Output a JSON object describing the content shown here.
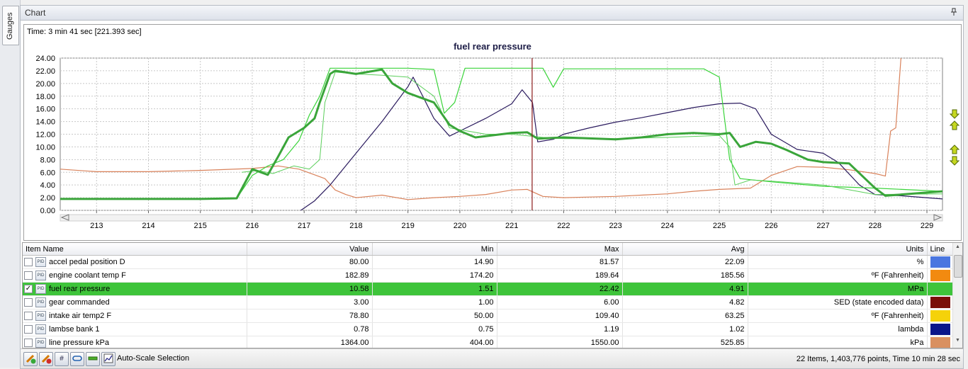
{
  "side_tab": {
    "label": "Gauges"
  },
  "panel": {
    "title": "Chart"
  },
  "time_label": "Time: 3 min 41 sec [221.393 sec]",
  "chart_data": {
    "type": "line",
    "title": "fuel rear pressure",
    "xlim": [
      212.3,
      229.3
    ],
    "ylim": [
      0,
      24
    ],
    "cursor_x": 221.393,
    "x_ticks": [
      213,
      214,
      215,
      216,
      217,
      218,
      219,
      220,
      221,
      222,
      223,
      224,
      225,
      226,
      227,
      228,
      229
    ],
    "y_ticks": [
      "0.00",
      "2.00",
      "4.00",
      "6.00",
      "8.00",
      "10.00",
      "12.00",
      "14.00",
      "16.00",
      "18.00",
      "20.00",
      "22.00",
      "24.00"
    ],
    "grid": true,
    "series": [
      {
        "color": "#d9825b",
        "width": 1.2,
        "points": [
          [
            212.3,
            6.5
          ],
          [
            213,
            6.1
          ],
          [
            214,
            6.1
          ],
          [
            215,
            6.3
          ],
          [
            216,
            6.6
          ],
          [
            216.5,
            7.0
          ],
          [
            216.9,
            6.5
          ],
          [
            217.2,
            5.6
          ],
          [
            217.4,
            5.0
          ],
          [
            217.6,
            3.2
          ],
          [
            217.8,
            2.5
          ],
          [
            218,
            2.0
          ],
          [
            218.5,
            2.4
          ],
          [
            219,
            1.7
          ],
          [
            219.5,
            2.0
          ],
          [
            220,
            2.2
          ],
          [
            220.5,
            2.5
          ],
          [
            221,
            3.2
          ],
          [
            221.3,
            3.3
          ],
          [
            221.6,
            2.2
          ],
          [
            222,
            2.0
          ],
          [
            222.5,
            2.1
          ],
          [
            223,
            2.2
          ],
          [
            223.5,
            2.4
          ],
          [
            224,
            2.6
          ],
          [
            224.5,
            3.0
          ],
          [
            225,
            3.3
          ],
          [
            225.3,
            3.4
          ],
          [
            225.6,
            3.5
          ],
          [
            226,
            5.5
          ],
          [
            226.5,
            6.9
          ],
          [
            227,
            6.8
          ],
          [
            227.5,
            6.4
          ],
          [
            228,
            5.8
          ],
          [
            228.2,
            5.4
          ],
          [
            228.3,
            12.5
          ],
          [
            228.4,
            13.0
          ],
          [
            228.5,
            24.0
          ]
        ]
      },
      {
        "color": "#2a1a5e",
        "width": 1.2,
        "points": [
          [
            216.9,
            -0.2
          ],
          [
            217.2,
            1.5
          ],
          [
            217.5,
            4.0
          ],
          [
            218,
            9.0
          ],
          [
            218.5,
            14.0
          ],
          [
            219,
            19.5
          ],
          [
            219.1,
            21.0
          ],
          [
            219.5,
            14.5
          ],
          [
            219.8,
            11.7
          ],
          [
            220,
            12.5
          ],
          [
            220.5,
            14.5
          ],
          [
            221,
            16.8
          ],
          [
            221.2,
            19.0
          ],
          [
            221.4,
            17.0
          ],
          [
            221.5,
            10.8
          ],
          [
            221.8,
            11.2
          ],
          [
            222,
            12.0
          ],
          [
            222.5,
            13.0
          ],
          [
            223,
            13.9
          ],
          [
            223.5,
            14.6
          ],
          [
            224,
            15.4
          ],
          [
            224.5,
            16.2
          ],
          [
            225,
            16.8
          ],
          [
            225.4,
            16.9
          ],
          [
            225.7,
            16.0
          ],
          [
            226,
            12.0
          ],
          [
            226.5,
            9.6
          ],
          [
            227,
            9.0
          ],
          [
            227.3,
            7.5
          ],
          [
            227.7,
            4.0
          ],
          [
            228,
            2.5
          ],
          [
            228.5,
            2.3
          ],
          [
            229.3,
            1.8
          ]
        ]
      },
      {
        "color": "#3ad43a",
        "width": 1.2,
        "points": [
          [
            212.3,
            1.8
          ],
          [
            213,
            1.8
          ],
          [
            214,
            1.8
          ],
          [
            215,
            1.8
          ],
          [
            215.7,
            1.9
          ],
          [
            216,
            5.5
          ],
          [
            216.3,
            7.0
          ],
          [
            216.6,
            8.0
          ],
          [
            216.9,
            11.0
          ],
          [
            217.1,
            15.0
          ],
          [
            217.3,
            18.0
          ],
          [
            217.5,
            22.4
          ],
          [
            218,
            22.4
          ],
          [
            219,
            22.4
          ],
          [
            219.5,
            22.2
          ],
          [
            219.7,
            15.3
          ],
          [
            219.9,
            17.0
          ],
          [
            220.1,
            22.4
          ],
          [
            221,
            22.4
          ],
          [
            221.6,
            22.4
          ],
          [
            221.8,
            19.4
          ],
          [
            222,
            22.3
          ],
          [
            223,
            22.3
          ],
          [
            224,
            22.3
          ],
          [
            224.7,
            22.3
          ],
          [
            225,
            21.0
          ],
          [
            225.2,
            8.0
          ],
          [
            225.4,
            5.0
          ],
          [
            226,
            4.5
          ],
          [
            227,
            3.8
          ],
          [
            228,
            3.5
          ],
          [
            229.3,
            3.0
          ]
        ]
      },
      {
        "color": "#5bcf5b",
        "width": 1.0,
        "points": [
          [
            215.8,
            6.0
          ],
          [
            216.1,
            6.3
          ],
          [
            216.4,
            5.8
          ],
          [
            216.8,
            7.0
          ],
          [
            217.1,
            6.5
          ],
          [
            217.3,
            8.0
          ],
          [
            217.4,
            17.0
          ],
          [
            217.6,
            21.8
          ],
          [
            218,
            21.5
          ],
          [
            218.5,
            21.3
          ],
          [
            219,
            21.0
          ],
          [
            219.5,
            18.0
          ],
          [
            219.8,
            13.0
          ],
          [
            220.5,
            12.0
          ],
          [
            221,
            12.0
          ],
          [
            221.6,
            11.5
          ],
          [
            222,
            11.3
          ],
          [
            223,
            11.3
          ],
          [
            224,
            11.5
          ],
          [
            225,
            11.8
          ],
          [
            225.2,
            10.0
          ],
          [
            225.3,
            4.0
          ],
          [
            225.6,
            4.8
          ],
          [
            226,
            4.6
          ],
          [
            227,
            4.0
          ],
          [
            228,
            2.5
          ],
          [
            229.3,
            2.6
          ]
        ]
      },
      {
        "color": "#3aa53a",
        "width": 3.0,
        "points": [
          [
            212.3,
            1.8
          ],
          [
            213,
            1.8
          ],
          [
            214,
            1.8
          ],
          [
            215,
            1.8
          ],
          [
            215.7,
            1.9
          ],
          [
            216,
            6.5
          ],
          [
            216.3,
            5.6
          ],
          [
            216.5,
            8.5
          ],
          [
            216.7,
            11.5
          ],
          [
            217,
            13.0
          ],
          [
            217.2,
            14.5
          ],
          [
            217.3,
            17.0
          ],
          [
            217.5,
            21.5
          ],
          [
            217.6,
            22.0
          ],
          [
            218,
            21.5
          ],
          [
            218.5,
            22.2
          ],
          [
            218.7,
            20.0
          ],
          [
            219,
            18.5
          ],
          [
            219.5,
            17.0
          ],
          [
            219.8,
            13.5
          ],
          [
            220,
            12.5
          ],
          [
            220.3,
            11.5
          ],
          [
            221,
            12.2
          ],
          [
            221.3,
            12.3
          ],
          [
            221.5,
            11.3
          ],
          [
            222,
            11.5
          ],
          [
            223,
            11.2
          ],
          [
            223.5,
            11.5
          ],
          [
            224,
            12.0
          ],
          [
            224.5,
            12.2
          ],
          [
            225,
            12.0
          ],
          [
            225.2,
            12.2
          ],
          [
            225.4,
            10.0
          ],
          [
            225.7,
            10.8
          ],
          [
            226,
            10.5
          ],
          [
            226.3,
            9.5
          ],
          [
            226.7,
            8.0
          ],
          [
            227,
            7.6
          ],
          [
            227.5,
            7.4
          ],
          [
            228,
            3.5
          ],
          [
            228.2,
            2.3
          ],
          [
            229.3,
            3.0
          ]
        ]
      }
    ]
  },
  "table": {
    "columns": [
      "Item Name",
      "Value",
      "Min",
      "Max",
      "Avg",
      "Units",
      "Line"
    ],
    "rows": [
      {
        "name": "accel pedal position D",
        "value": "80.00",
        "min": "14.90",
        "max": "81.57",
        "avg": "22.09",
        "units": "%",
        "color": "#4a76e0",
        "checked": false,
        "selected": false
      },
      {
        "name": "engine coolant temp F",
        "value": "182.89",
        "min": "174.20",
        "max": "189.64",
        "avg": "185.56",
        "units": "ºF (Fahrenheit)",
        "color": "#f28a10",
        "checked": false,
        "selected": false
      },
      {
        "name": "fuel rear pressure",
        "value": "10.58",
        "min": "1.51",
        "max": "22.42",
        "avg": "4.91",
        "units": "MPa",
        "color": "#3ec43a",
        "checked": true,
        "selected": true
      },
      {
        "name": "gear commanded",
        "value": "3.00",
        "min": "1.00",
        "max": "6.00",
        "avg": "4.82",
        "units": "SED (state encoded data)",
        "color": "#7a0e08",
        "checked": false,
        "selected": false
      },
      {
        "name": "intake air temp2 F",
        "value": "78.80",
        "min": "50.00",
        "max": "109.40",
        "avg": "63.25",
        "units": "ºF (Fahrenheit)",
        "color": "#f5d20a",
        "checked": false,
        "selected": false
      },
      {
        "name": "lambse bank 1",
        "value": "0.78",
        "min": "0.75",
        "max": "1.19",
        "avg": "1.02",
        "units": "lambda",
        "color": "#0a168a",
        "checked": false,
        "selected": false
      },
      {
        "name": "line pressure kPa",
        "value": "1364.00",
        "min": "404.00",
        "max": "1550.00",
        "avg": "525.85",
        "units": "kPa",
        "color": "#d99060",
        "checked": false,
        "selected": false
      }
    ]
  },
  "toolbar": {
    "autoscale_label": "Auto-Scale Selection",
    "status": "22 Items, 1,403,776 points, Time 10 min 28 sec"
  },
  "icons": {
    "checkmark": "✓",
    "pid": "PID",
    "hash": "#",
    "pin": "⌖",
    "arrow_up": "▲",
    "arrow_down": "▼"
  }
}
